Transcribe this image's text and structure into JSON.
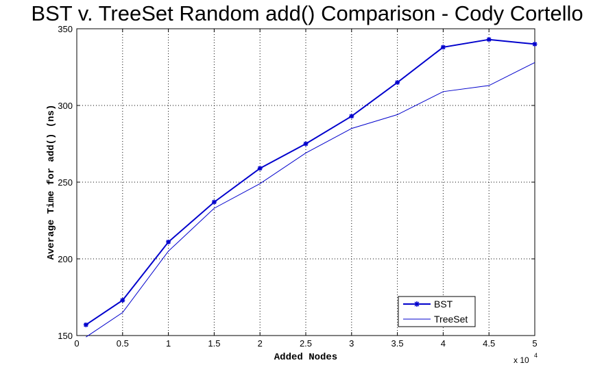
{
  "chart_data": {
    "type": "line",
    "title": "BST v. TreeSet Random add() Comparison - Cody Cortello",
    "xlabel": "Added Nodes",
    "ylabel": "Average Time for add() (ns)",
    "x_exponent_base": "x 10",
    "x_exponent_power": "4",
    "xlim": [
      0,
      5
    ],
    "ylim": [
      150,
      350
    ],
    "xticks": [
      0,
      0.5,
      1,
      1.5,
      2,
      2.5,
      3,
      3.5,
      4,
      4.5,
      5
    ],
    "xtick_labels": [
      "0",
      "0.5",
      "1",
      "1.5",
      "2",
      "2.5",
      "3",
      "3.5",
      "4",
      "4.5",
      "5"
    ],
    "yticks": [
      150,
      200,
      250,
      300,
      350
    ],
    "ytick_labels": [
      "150",
      "200",
      "250",
      "300",
      "350"
    ],
    "grid": true,
    "legend_position": "bottom-right",
    "x": [
      0.1,
      0.5,
      1,
      1.5,
      2,
      2.5,
      3,
      3.5,
      4,
      4.5,
      5
    ],
    "series": [
      {
        "name": "BST",
        "color": "#0000cc",
        "marker": "star",
        "values": [
          157,
          173,
          211,
          237,
          259,
          275,
          293,
          315,
          338,
          343,
          340
        ]
      },
      {
        "name": "TreeSet",
        "color": "#0000cc",
        "marker": "none",
        "values": [
          149,
          165,
          205,
          233,
          249,
          269,
          285,
          294,
          309,
          313,
          328
        ]
      }
    ]
  }
}
